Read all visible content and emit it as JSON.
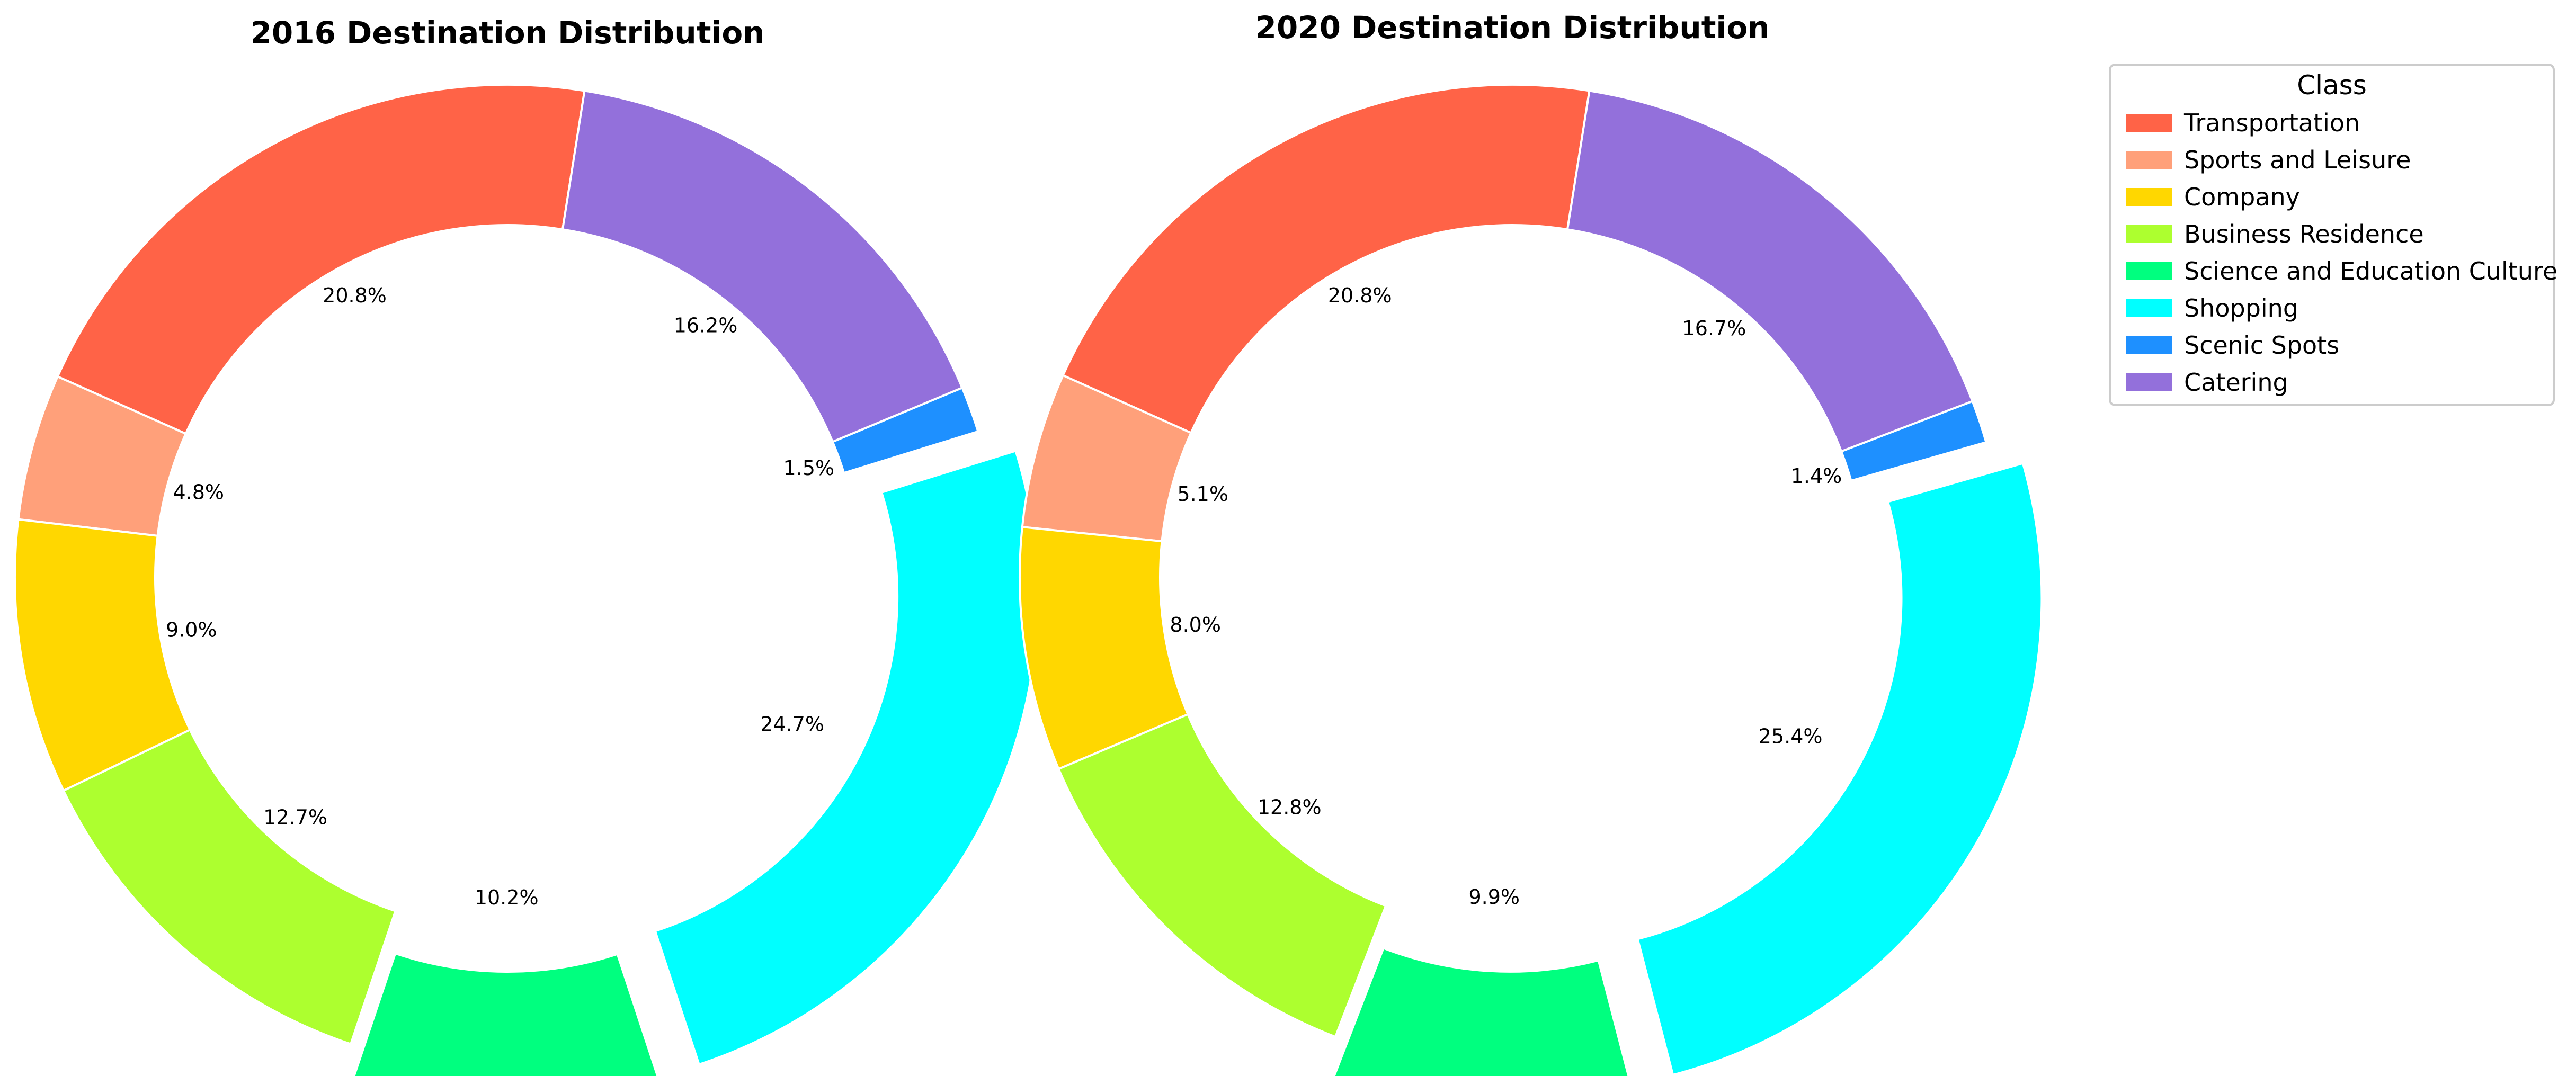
{
  "chart_data": [
    {
      "type": "pie",
      "variant": "donut",
      "title": "2016 Destination Distribution",
      "categories": [
        "Transportation",
        "Sports and Leisure",
        "Company",
        "Business Residence",
        "Science and Education Culture",
        "Shopping",
        "Scenic Spots",
        "Catering"
      ],
      "values": [
        20.8,
        4.8,
        9.0,
        12.7,
        10.2,
        24.7,
        1.5,
        16.2
      ],
      "labels": [
        "20.8%",
        "4.8%",
        "9.0%",
        "12.7%",
        "10.2%",
        "24.7%",
        "1.5%",
        "16.2%"
      ],
      "exploded": [
        "Shopping",
        "Science and Education Culture"
      ]
    },
    {
      "type": "pie",
      "variant": "donut",
      "title": "2020 Destination Distribution",
      "categories": [
        "Transportation",
        "Sports and Leisure",
        "Company",
        "Business Residence",
        "Science and Education Culture",
        "Shopping",
        "Scenic Spots",
        "Catering"
      ],
      "values": [
        20.8,
        5.1,
        8.0,
        12.8,
        9.9,
        25.4,
        1.4,
        16.7
      ],
      "labels": [
        "20.8%",
        "5.1%",
        "8.0%",
        "12.8%",
        "9.9%",
        "25.4%",
        "1.4%",
        "16.7%"
      ],
      "exploded": [
        "Shopping",
        "Science and Education Culture"
      ]
    }
  ],
  "legend": {
    "title": "Class",
    "placement": "top-right",
    "items": [
      {
        "label": "Transportation",
        "color": "#FF6347"
      },
      {
        "label": "Sports and Leisure",
        "color": "#FFA07A"
      },
      {
        "label": "Company",
        "color": "#FFD700"
      },
      {
        "label": "Business Residence",
        "color": "#ADFF2F"
      },
      {
        "label": "Science and Education Culture",
        "color": "#00FF7F"
      },
      {
        "label": "Shopping",
        "color": "#00FFFF"
      },
      {
        "label": "Scenic Spots",
        "color": "#1E90FF"
      },
      {
        "label": "Catering",
        "color": "#9370DB"
      }
    ]
  }
}
